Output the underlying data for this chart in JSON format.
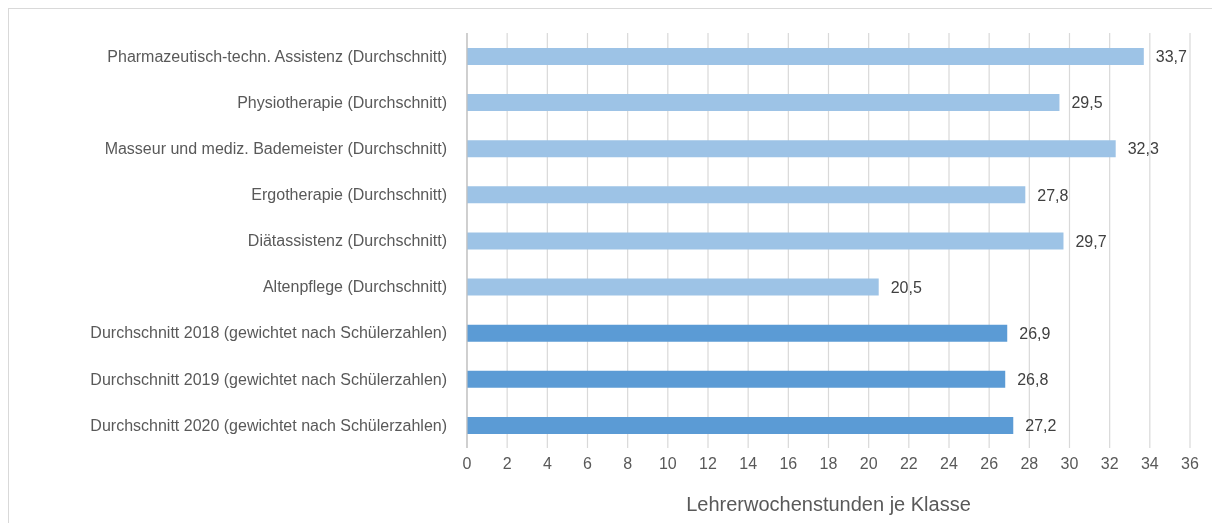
{
  "chart_data": {
    "type": "bar",
    "orientation": "horizontal",
    "xlabel": "Lehrerwochenstunden je Klasse",
    "categories": [
      "Pharmazeutisch-techn. Assistenz (Durchschnitt)",
      "Physiotherapie (Durchschnitt)",
      "Masseur und mediz. Bademeister (Durchschnitt)",
      "Ergotherapie (Durchschnitt)",
      "Diätassistenz (Durchschnitt)",
      "Altenpflege (Durchschnitt)",
      "Durchschnitt 2018 (gewichtet nach Schülerzahlen)",
      "Durchschnitt 2019 (gewichtet nach Schülerzahlen)",
      "Durchschnitt 2020 (gewichtet nach Schülerzahlen)"
    ],
    "values": [
      33.7,
      29.5,
      32.3,
      27.8,
      29.7,
      20.5,
      26.9,
      26.8,
      27.2
    ],
    "value_labels": [
      "33,7",
      "29,5",
      "32,3",
      "27,8",
      "29,7",
      "20,5",
      "26,9",
      "26,8",
      "27,2"
    ],
    "colors": [
      "#9dc3e6",
      "#9dc3e6",
      "#9dc3e6",
      "#9dc3e6",
      "#9dc3e6",
      "#9dc3e6",
      "#5b9bd5",
      "#5b9bd5",
      "#5b9bd5"
    ],
    "xlim": [
      0,
      36
    ],
    "xticks": [
      0,
      2,
      4,
      6,
      8,
      10,
      12,
      14,
      16,
      18,
      20,
      22,
      24,
      26,
      28,
      30,
      32,
      34,
      36
    ],
    "grid": "x"
  }
}
